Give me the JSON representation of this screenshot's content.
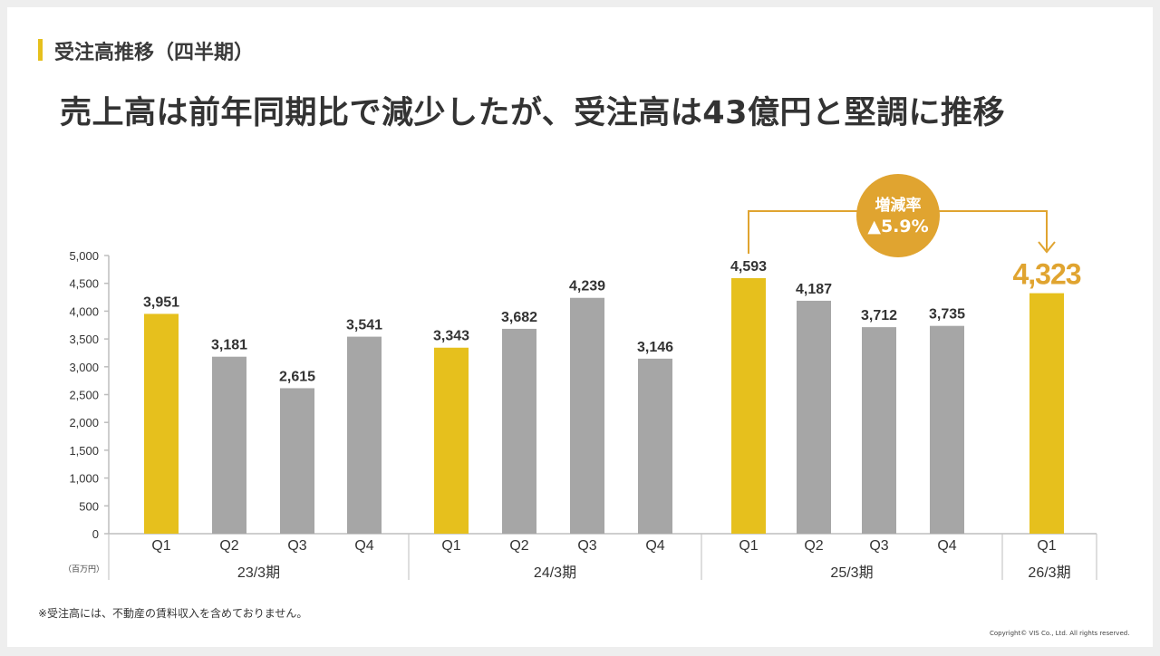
{
  "section_title": "受注高推移（四半期）",
  "headline": "売上高は前年同期比で減少したが、受注高は43億円と堅調に推移",
  "footnote": "※受注高には、不動産の賃料収入を含めておりません。",
  "copyright": "Copyright© VIS Co., Ltd. All rights reserved.",
  "change_badge": {
    "label": "増減率",
    "value": "▲5.9%"
  },
  "colors": {
    "highlight": "#e6c01d",
    "normal": "#a6a6a6",
    "accent": "#e0a430"
  },
  "chart_data": {
    "type": "bar",
    "unit_label": "（百万円）",
    "ylim": [
      0,
      5000
    ],
    "yticks": [
      "5,000",
      "4,500",
      "4,000",
      "3,500",
      "3,000",
      "2,500",
      "2,000",
      "1,500",
      "1,000",
      "500",
      "0"
    ],
    "ytick_values": [
      5000,
      4500,
      4000,
      3500,
      3000,
      2500,
      2000,
      1500,
      1000,
      500,
      0
    ],
    "groups": [
      {
        "period": "23/3期",
        "bars": [
          {
            "quarter": "Q1",
            "value": 3951,
            "label": "3,951",
            "highlight": true
          },
          {
            "quarter": "Q2",
            "value": 3181,
            "label": "3,181",
            "highlight": false
          },
          {
            "quarter": "Q3",
            "value": 2615,
            "label": "2,615",
            "highlight": false
          },
          {
            "quarter": "Q4",
            "value": 3541,
            "label": "3,541",
            "highlight": false
          }
        ]
      },
      {
        "period": "24/3期",
        "bars": [
          {
            "quarter": "Q1",
            "value": 3343,
            "label": "3,343",
            "highlight": true
          },
          {
            "quarter": "Q2",
            "value": 3682,
            "label": "3,682",
            "highlight": false
          },
          {
            "quarter": "Q3",
            "value": 4239,
            "label": "4,239",
            "highlight": false
          },
          {
            "quarter": "Q4",
            "value": 3146,
            "label": "3,146",
            "highlight": false
          }
        ]
      },
      {
        "period": "25/3期",
        "bars": [
          {
            "quarter": "Q1",
            "value": 4593,
            "label": "4,593",
            "highlight": true
          },
          {
            "quarter": "Q2",
            "value": 4187,
            "label": "4,187",
            "highlight": false
          },
          {
            "quarter": "Q3",
            "value": 3712,
            "label": "3,712",
            "highlight": false
          },
          {
            "quarter": "Q4",
            "value": 3735,
            "label": "3,735",
            "highlight": false
          }
        ]
      },
      {
        "period": "26/3期",
        "bars": [
          {
            "quarter": "Q1",
            "value": 4323,
            "label": "4,323",
            "highlight": true,
            "emphasis": true
          }
        ]
      }
    ]
  }
}
